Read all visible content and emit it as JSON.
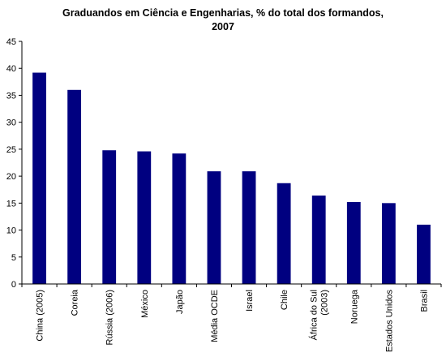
{
  "chart_data": {
    "type": "bar",
    "title_lines": [
      "Graduandos em Ciência e Engenharias, % do total dos formandos,",
      "2007"
    ],
    "xlabel": "",
    "ylabel": "",
    "categories": [
      "China (2005)",
      "Coreia",
      "Rússia (2006)",
      "México",
      "Japão",
      "Média OCDE",
      "Israel",
      "Chile",
      [
        "África do Sul",
        "(2003)"
      ],
      "Noruega",
      "Estados Unidos",
      "Brasil"
    ],
    "values": [
      39.2,
      36.0,
      24.8,
      24.6,
      24.2,
      20.9,
      20.9,
      18.7,
      16.4,
      15.2,
      15.0,
      11.0
    ],
    "ylim": [
      0,
      45
    ],
    "yticks": [
      0,
      5,
      10,
      15,
      20,
      25,
      30,
      35,
      40,
      45
    ],
    "grid": false,
    "legend": "none",
    "colors": {
      "bar": "#000080",
      "axis": "#000000"
    }
  }
}
